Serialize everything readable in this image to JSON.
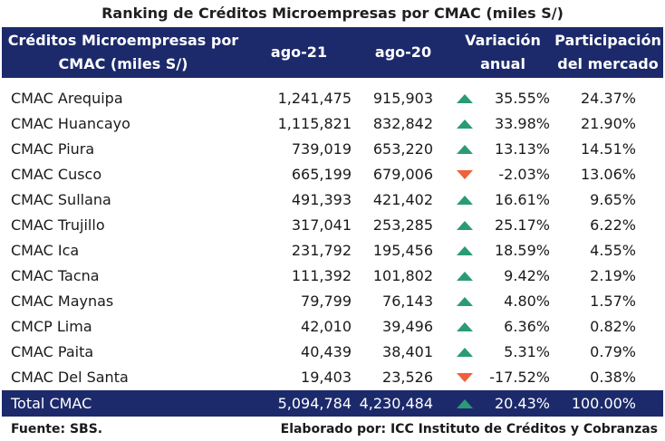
{
  "title": "Ranking de Créditos Microempresas por CMAC (miles S/)",
  "headers": {
    "name": [
      "Créditos Microempresas por",
      "CMAC (miles S/)"
    ],
    "ago21": "ago-21",
    "ago20": "ago-20",
    "variation": [
      "Variación",
      "anual"
    ],
    "share": [
      "Participación",
      "del mercado"
    ]
  },
  "rows": [
    {
      "name": "CMAC Arequipa",
      "ago21": "1,241,475",
      "ago20": "915,903",
      "trend": "up",
      "variation": "35.55%",
      "share": "24.37%"
    },
    {
      "name": "CMAC Huancayo",
      "ago21": "1,115,821",
      "ago20": "832,842",
      "trend": "up",
      "variation": "33.98%",
      "share": "21.90%"
    },
    {
      "name": "CMAC Piura",
      "ago21": "739,019",
      "ago20": "653,220",
      "trend": "up",
      "variation": "13.13%",
      "share": "14.51%"
    },
    {
      "name": "CMAC Cusco",
      "ago21": "665,199",
      "ago20": "679,006",
      "trend": "down",
      "variation": "-2.03%",
      "share": "13.06%"
    },
    {
      "name": "CMAC Sullana",
      "ago21": "491,393",
      "ago20": "421,402",
      "trend": "up",
      "variation": "16.61%",
      "share": "9.65%"
    },
    {
      "name": "CMAC Trujillo",
      "ago21": "317,041",
      "ago20": "253,285",
      "trend": "up",
      "variation": "25.17%",
      "share": "6.22%"
    },
    {
      "name": "CMAC Ica",
      "ago21": "231,792",
      "ago20": "195,456",
      "trend": "up",
      "variation": "18.59%",
      "share": "4.55%"
    },
    {
      "name": "CMAC Tacna",
      "ago21": "111,392",
      "ago20": "101,802",
      "trend": "up",
      "variation": "9.42%",
      "share": "2.19%"
    },
    {
      "name": "CMAC Maynas",
      "ago21": "79,799",
      "ago20": "76,143",
      "trend": "up",
      "variation": "4.80%",
      "share": "1.57%"
    },
    {
      "name": "CMCP Lima",
      "ago21": "42,010",
      "ago20": "39,496",
      "trend": "up",
      "variation": "6.36%",
      "share": "0.82%"
    },
    {
      "name": "CMAC Paita",
      "ago21": "40,439",
      "ago20": "38,401",
      "trend": "up",
      "variation": "5.31%",
      "share": "0.79%"
    },
    {
      "name": "CMAC Del Santa",
      "ago21": "19,403",
      "ago20": "23,526",
      "trend": "down",
      "variation": "-17.52%",
      "share": "0.38%"
    }
  ],
  "total": {
    "name": "Total CMAC",
    "ago21": "5,094,784",
    "ago20": "4,230,484",
    "trend": "up",
    "variation": "20.43%",
    "share": "100.00%"
  },
  "footer": {
    "source": "Fuente: SBS.",
    "credit": "Elaborado por: ICC Instituto de Créditos y Cobranzas"
  },
  "colors": {
    "header_bg": "#1c2a6b",
    "up": "#2b9a78",
    "down": "#f0603a"
  }
}
